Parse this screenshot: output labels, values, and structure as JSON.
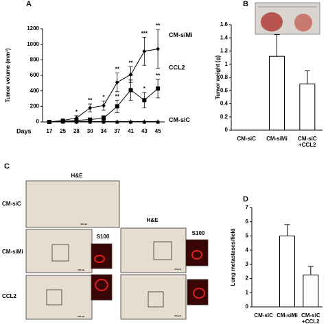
{
  "chart_data": [
    {
      "type": "line",
      "panel": "A",
      "ylabel": "Tumor volume (mm³)",
      "xlabel": "Days",
      "categories": [
        "17",
        "25",
        "28",
        "30",
        "34",
        "37",
        "41",
        "43",
        "45"
      ],
      "ylim": [
        0,
        1200
      ],
      "yticks": [
        0,
        200,
        400,
        600,
        800,
        1000,
        1200
      ],
      "grid": false,
      "series": [
        {
          "name": "CM-siMi",
          "color": "#000000",
          "marker": "diamond",
          "values": [
            0,
            20,
            50,
            180,
            210,
            510,
            610,
            910,
            940
          ],
          "errors": [
            15,
            20,
            30,
            50,
            60,
            120,
            100,
            180,
            250
          ],
          "annotations": [
            null,
            null,
            "*",
            "**",
            "*",
            "**",
            "**",
            "***",
            "**"
          ]
        },
        {
          "name": "CCL2",
          "color": "#000000",
          "marker": "square",
          "values": [
            0,
            10,
            20,
            30,
            50,
            200,
            410,
            280,
            430
          ],
          "errors": [
            10,
            10,
            15,
            20,
            30,
            80,
            130,
            100,
            120
          ],
          "annotations": [
            null,
            null,
            null,
            null,
            null,
            "**",
            "**",
            "*",
            "**"
          ]
        },
        {
          "name": "CM-siC",
          "color": "#000000",
          "marker": "triangle",
          "values": [
            0,
            5,
            5,
            5,
            5,
            5,
            5,
            5,
            5
          ],
          "errors": [
            5,
            5,
            5,
            5,
            5,
            5,
            5,
            5,
            5
          ],
          "annotations": [
            null,
            null,
            null,
            null,
            null,
            null,
            null,
            null,
            null
          ]
        }
      ]
    },
    {
      "type": "bar",
      "panel": "B",
      "ylabel": "Tumor weight (g)",
      "categories": [
        "CM-siC",
        "CM-siMi",
        "CM-siC\n+CCL2"
      ],
      "values": [
        0,
        1.12,
        0.7
      ],
      "errors": [
        0,
        0.33,
        0.2
      ],
      "color": "#ffffff",
      "ylim": [
        0,
        1.6
      ],
      "yticks": [
        0,
        0.2,
        0.4,
        0.6,
        0.8,
        1,
        1.2,
        1.4,
        1.6
      ],
      "grid": false
    },
    {
      "type": "bar",
      "panel": "D",
      "ylabel": "Lung metastases/field",
      "categories": [
        "CM-siC",
        "CM-siMi",
        "CM-siC\n+CCL2"
      ],
      "values": [
        0,
        5.0,
        2.25
      ],
      "errors": [
        0,
        0.8,
        0.6
      ],
      "color": "#ffffff",
      "ylim": [
        0,
        7
      ],
      "yticks": [
        0,
        1,
        2,
        3,
        4,
        5,
        6,
        7
      ],
      "grid": false
    }
  ],
  "panel_c": {
    "letter": "C",
    "stain_main": "H&E",
    "stain_inset": "S100",
    "rows": [
      "CM-siC",
      "CM-siMi",
      "CCL2"
    ],
    "scale_bar": "100 µm"
  }
}
